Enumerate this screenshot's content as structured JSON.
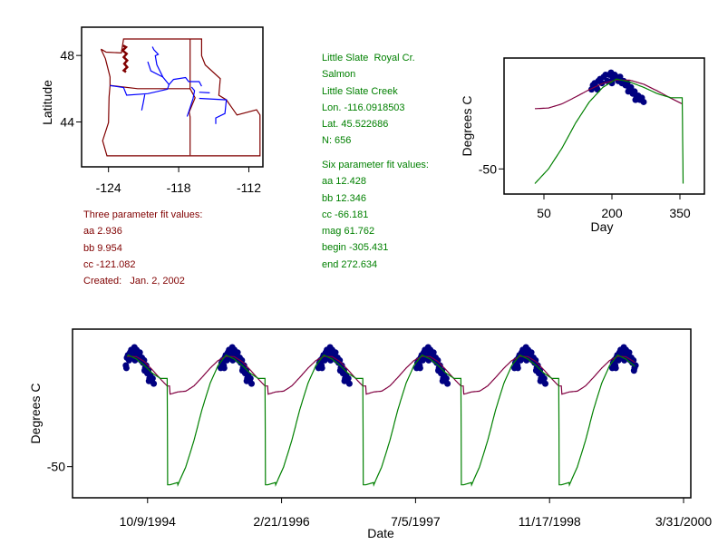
{
  "site_info": {
    "lines": [
      "Little Slate  Royal Cr.",
      "Salmon",
      "Little Slate Creek",
      "Lon. -116.0918503",
      "Lat. 45.522686",
      "N: 656"
    ],
    "six_param_title": "Six parameter fit values:",
    "six_param": [
      "aa 12.428",
      "bb 12.346",
      "cc -66.181",
      "mag 61.762",
      "begin -305.431",
      "end 272.634"
    ],
    "color": "#008000"
  },
  "three_param": {
    "title": "Three parameter fit values:",
    "values": [
      "aa 2.936",
      "bb 9.954",
      "cc -121.082"
    ],
    "created": "Created:   Jan. 2, 2002",
    "color": "#800000"
  },
  "colors": {
    "observations": "#000080",
    "three_param_fit": "#800040",
    "six_param_fit": "#008000",
    "state_borders": "#800000",
    "rivers": "#0000ff"
  },
  "chart_data": [
    {
      "type": "map",
      "xlabel": "",
      "ylabel": "Latitude",
      "xlim": [
        -126.3,
        -110.8
      ],
      "ylim": [
        41.3,
        49.7
      ],
      "xticks": [
        -124,
        -118,
        -112
      ],
      "yticks": [
        48,
        44
      ],
      "borders": [
        [
          [
            -124.64,
            48.38
          ],
          [
            -124.2,
            48.2
          ],
          [
            -122.9,
            48.15
          ],
          [
            -122.71,
            48.99
          ],
          [
            -117.02,
            48.99
          ],
          [
            -116.04,
            48.99
          ],
          [
            -116.04,
            47.98
          ],
          [
            -115.73,
            47.43
          ],
          [
            -114.44,
            46.6
          ],
          [
            -114.57,
            45.61
          ],
          [
            -113.92,
            45.33
          ],
          [
            -113.02,
            44.42
          ],
          [
            -111.34,
            44.73
          ],
          [
            -111.05,
            44.42
          ],
          [
            -111.05,
            41.96
          ],
          [
            -124.13,
            41.96
          ],
          [
            -124.5,
            42.87
          ],
          [
            -124.0,
            43.96
          ],
          [
            -123.95,
            45.5
          ],
          [
            -123.87,
            46.19
          ],
          [
            -123.87,
            46.7
          ],
          [
            -124.0,
            47.07
          ],
          [
            -124.26,
            47.8
          ],
          [
            -124.64,
            48.38
          ]
        ],
        [
          [
            -123.87,
            46.2
          ],
          [
            -121.5,
            46.0
          ],
          [
            -119.0,
            46.0
          ],
          [
            -117.02,
            46.0
          ]
        ],
        [
          [
            -117.02,
            48.99
          ],
          [
            -117.02,
            46.0
          ],
          [
            -116.6,
            45.45
          ],
          [
            -117.1,
            44.6
          ],
          [
            -117.02,
            44.3
          ],
          [
            -117.02,
            42.0
          ]
        ]
      ],
      "puget_sound": [
        [
          -122.75,
          48.6
        ],
        [
          -122.5,
          48.5
        ],
        [
          -122.8,
          48.3
        ],
        [
          -122.45,
          48.1
        ],
        [
          -122.7,
          47.9
        ],
        [
          -122.4,
          47.7
        ],
        [
          -122.65,
          47.5
        ],
        [
          -122.4,
          47.3
        ],
        [
          -122.7,
          47.1
        ],
        [
          -122.5,
          47.0
        ]
      ],
      "rivers": [
        [
          [
            -123.87,
            46.19
          ],
          [
            -122.71,
            46.07
          ],
          [
            -122.45,
            45.61
          ],
          [
            -120.64,
            45.7
          ],
          [
            -118.96,
            45.97
          ],
          [
            -118.83,
            46.25
          ],
          [
            -118.44,
            46.56
          ],
          [
            -117.41,
            46.67
          ],
          [
            -117.15,
            46.43
          ],
          [
            -116.25,
            46.43
          ],
          [
            -116.04,
            46.15
          ]
        ],
        [
          [
            -118.83,
            46.25
          ],
          [
            -119.35,
            46.7
          ],
          [
            -119.87,
            47.44
          ],
          [
            -120.0,
            47.98
          ],
          [
            -119.74,
            48.07
          ],
          [
            -120.12,
            48.35
          ],
          [
            -120.25,
            48.53
          ]
        ],
        [
          [
            -119.35,
            46.7
          ],
          [
            -120.38,
            47.07
          ],
          [
            -120.64,
            47.62
          ]
        ],
        [
          [
            -120.9,
            45.65
          ],
          [
            -121.03,
            45.15
          ],
          [
            -121.16,
            44.7
          ]
        ],
        [
          [
            -116.9,
            46.1
          ],
          [
            -116.64,
            45.88
          ],
          [
            -116.77,
            45.42
          ],
          [
            -117.15,
            44.6
          ],
          [
            -117.28,
            44.33
          ]
        ],
        [
          [
            -116.25,
            45.42
          ],
          [
            -113.92,
            45.33
          ],
          [
            -114.05,
            44.51
          ],
          [
            -114.83,
            44.24
          ],
          [
            -114.83,
            43.88
          ]
        ],
        [
          [
            -116.25,
            45.79
          ],
          [
            -115.34,
            45.75
          ]
        ]
      ]
    },
    {
      "type": "scatter+line",
      "xlabel": "Day",
      "ylabel": "Degrees C",
      "xlim": [
        -38,
        404
      ],
      "ylim": [
        -62,
        3
      ],
      "xticks": [
        50,
        200,
        350
      ],
      "yticks": [
        -50
      ],
      "three_param_fit": {
        "x": [
          30,
          60,
          90,
          120,
          150,
          180,
          210,
          240,
          270,
          300,
          330,
          355
        ],
        "y": [
          -21.2,
          -20.9,
          -18.9,
          -15.6,
          -12.1,
          -9.1,
          -7.5,
          -7.6,
          -9.5,
          -12.7,
          -16.2,
          -18.9
        ]
      },
      "six_param_fit": {
        "x": [
          30,
          60,
          90,
          120,
          150,
          180,
          210,
          240,
          270,
          300,
          330,
          355,
          356,
          357
        ],
        "y": [
          -57,
          -50,
          -40,
          -28,
          -18,
          -11,
          -7,
          -8.5,
          -11,
          -14,
          -16,
          -16,
          -36,
          -57
        ]
      },
      "observations": [
        [
          155,
          -12
        ],
        [
          158,
          -10
        ],
        [
          162,
          -9
        ],
        [
          166,
          -11
        ],
        [
          170,
          -8
        ],
        [
          174,
          -7
        ],
        [
          178,
          -9
        ],
        [
          182,
          -6
        ],
        [
          186,
          -5
        ],
        [
          190,
          -8
        ],
        [
          194,
          -5
        ],
        [
          198,
          -4
        ],
        [
          202,
          -7
        ],
        [
          206,
          -5
        ],
        [
          210,
          -6
        ],
        [
          214,
          -8
        ],
        [
          218,
          -6
        ],
        [
          222,
          -9
        ],
        [
          226,
          -8
        ],
        [
          230,
          -10
        ],
        [
          234,
          -9
        ],
        [
          238,
          -12
        ],
        [
          242,
          -11
        ],
        [
          246,
          -14
        ],
        [
          250,
          -13
        ],
        [
          254,
          -16
        ],
        [
          258,
          -15
        ],
        [
          262,
          -17
        ],
        [
          266,
          -16
        ],
        [
          270,
          -18
        ],
        [
          168,
          -12
        ],
        [
          200,
          -9
        ],
        [
          236,
          -13
        ],
        [
          252,
          -17
        ]
      ]
    },
    {
      "type": "scatter+line",
      "xlabel": "Date",
      "ylabel": "Degrees C",
      "xlim": [
        "1994-01-02",
        "2000-04-27"
      ],
      "ylim": [
        -62,
        3
      ],
      "xticks": [
        {
          "date": "1994-10-09",
          "label": "10/9/1994"
        },
        {
          "date": "1996-02-21",
          "label": "2/21/1996"
        },
        {
          "date": "1997-07-05",
          "label": "7/5/1997"
        },
        {
          "date": "1998-11-17",
          "label": "11/17/1998"
        },
        {
          "date": "2000-03-31",
          "label": "3/31/2000"
        }
      ],
      "yticks": [
        -50
      ],
      "series_range": [
        "1994-07-25",
        "1999-10-01"
      ],
      "observation_years": [
        1994,
        1995,
        1996,
        1997,
        1998,
        1999
      ]
    }
  ]
}
